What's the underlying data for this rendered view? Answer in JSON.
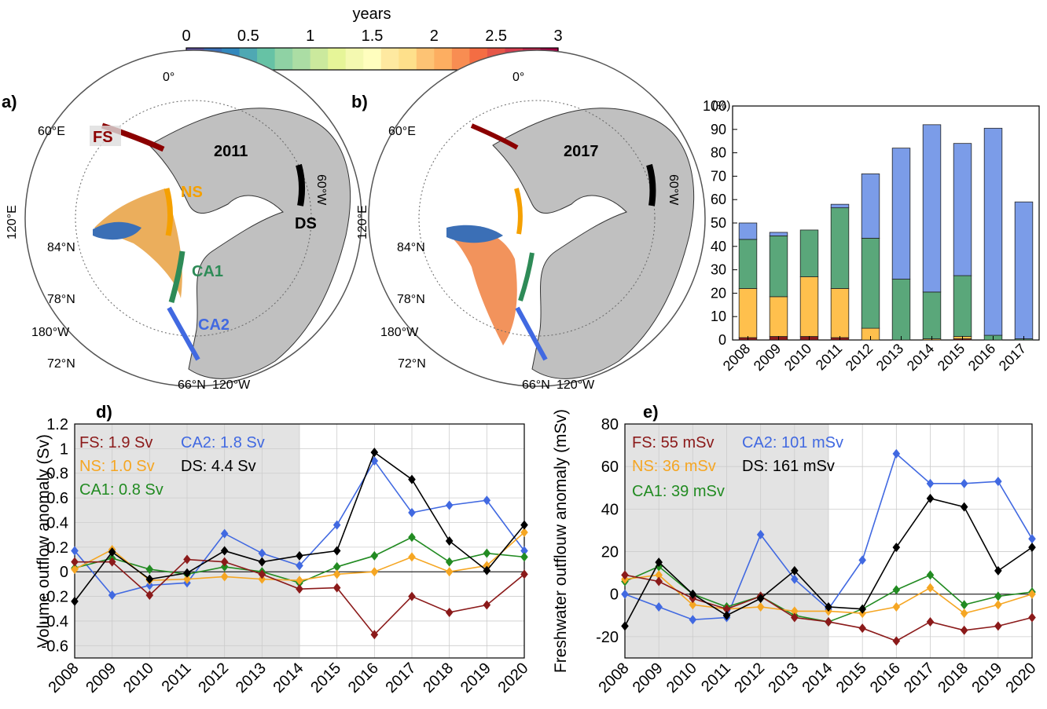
{
  "colorbar": {
    "title": "years",
    "ticks": [
      "0",
      "0.5",
      "1",
      "1.5",
      "2",
      "2.5",
      "3"
    ],
    "range": [
      0,
      3
    ],
    "colors": [
      "#5e4fa2",
      "#3b6fb6",
      "#3288bd",
      "#4fa8b3",
      "#66c2a5",
      "#8fd2a4",
      "#abdda4",
      "#cbe99d",
      "#e6f598",
      "#f4f9b0",
      "#fffebe",
      "#fee9a0",
      "#fee08b",
      "#fdc374",
      "#fdae61",
      "#f88d52",
      "#f46d43",
      "#e55748",
      "#d53e4f",
      "#c0244b",
      "#9e0142"
    ]
  },
  "maps": [
    {
      "panel": "a)",
      "year": "2011",
      "sections": [
        {
          "name": "FS",
          "color": "#8b0000"
        },
        {
          "name": "NS",
          "color": "#f5a000"
        },
        {
          "name": "DS",
          "color": "#000000"
        },
        {
          "name": "CA1",
          "color": "#2e8b57"
        },
        {
          "name": "CA2",
          "color": "#4169e1"
        }
      ],
      "labels": [
        "0°",
        "60°E",
        "120°E",
        "84°N",
        "78°N",
        "180°W",
        "72°N",
        "66°N",
        "120°W",
        "60°W"
      ]
    },
    {
      "panel": "b)",
      "year": "2017",
      "labels": [
        "0°",
        "60°E",
        "120°E",
        "84°N",
        "78°N",
        "180°W",
        "72°N",
        "66°N",
        "120°W",
        "60°W"
      ]
    }
  ],
  "chart_data": [
    {
      "panel": "c)",
      "type": "bar",
      "stacked": true,
      "ylabel": "(%)",
      "ylim": [
        0,
        100
      ],
      "yticks": [
        0,
        10,
        20,
        30,
        40,
        50,
        60,
        70,
        80,
        90,
        100
      ],
      "categories": [
        "2008",
        "2009",
        "2010",
        "2011",
        "2012",
        "2013",
        "2014",
        "2015",
        "2016",
        "2017"
      ],
      "series": [
        {
          "color": "#8b1a1a",
          "values": [
            1,
            1.5,
            1.5,
            1,
            0,
            0,
            0,
            0.5,
            0,
            0
          ]
        },
        {
          "color": "#ffc04d",
          "values": [
            21,
            17,
            25.5,
            21,
            5,
            0,
            0.5,
            1,
            0,
            0
          ]
        },
        {
          "color": "#5aa77a",
          "values": [
            21,
            26,
            20,
            34.5,
            38.5,
            26,
            20,
            26,
            2,
            0.5
          ]
        },
        {
          "color": "#7b9ce8",
          "values": [
            7,
            1.5,
            0,
            1.5,
            27.5,
            56,
            71.5,
            56.5,
            88.5,
            58.5
          ]
        }
      ]
    },
    {
      "panel": "d)",
      "type": "line",
      "ylabel": "Volume outflow anomaly (Sv)",
      "ylim": [
        -0.7,
        1.2
      ],
      "yticks": [
        "-0.6",
        "-0.4",
        "-0.2",
        "0",
        "0.2",
        "0.4",
        "0.6",
        "0.8",
        "1",
        "1.2"
      ],
      "ytickvals": [
        -0.6,
        -0.4,
        -0.2,
        0,
        0.2,
        0.4,
        0.6,
        0.8,
        1,
        1.2
      ],
      "x": [
        "2008",
        "2009",
        "2010",
        "2011",
        "2012",
        "2013",
        "2014",
        "2015",
        "2016",
        "2017",
        "2018",
        "2019",
        "2020"
      ],
      "shade_until": "2014",
      "legend": [
        {
          "text": "FS: 1.9 Sv",
          "color": "#8b1a1a"
        },
        {
          "text": "CA2: 1.8 Sv",
          "color": "#4169e1"
        },
        {
          "text": "NS: 1.0 Sv",
          "color": "#f5a623"
        },
        {
          "text": "DS: 4.4 Sv",
          "color": "#000000"
        },
        {
          "text": "CA1: 0.8 Sv",
          "color": "#228b22"
        }
      ],
      "series": [
        {
          "color": "#4169e1",
          "values": [
            0.17,
            -0.19,
            -0.11,
            -0.09,
            0.31,
            0.15,
            0.05,
            0.38,
            0.9,
            0.48,
            0.54,
            0.58,
            0.17
          ]
        },
        {
          "color": "#228b22",
          "values": [
            0.03,
            0.11,
            0.02,
            -0.02,
            0.04,
            0.0,
            -0.09,
            0.04,
            0.13,
            0.28,
            0.08,
            0.15,
            0.12
          ]
        },
        {
          "color": "#f5a623",
          "values": [
            0.02,
            0.18,
            -0.07,
            -0.06,
            -0.04,
            -0.06,
            -0.07,
            -0.02,
            0.0,
            0.12,
            0.0,
            0.05,
            0.32
          ]
        },
        {
          "color": "#8b1a1a",
          "values": [
            0.08,
            0.08,
            -0.19,
            0.1,
            0.08,
            -0.02,
            -0.14,
            -0.13,
            -0.51,
            -0.2,
            -0.33,
            -0.27,
            -0.02
          ]
        },
        {
          "color": "#000000",
          "values": [
            -0.24,
            0.16,
            -0.06,
            -0.01,
            0.17,
            0.08,
            0.13,
            0.17,
            0.97,
            0.75,
            0.25,
            0.01,
            0.38
          ]
        }
      ]
    },
    {
      "panel": "e)",
      "type": "line",
      "ylabel": "Freshwater outflouw anomaly (mSv)",
      "ylim": [
        -30,
        80
      ],
      "yticks": [
        "-20",
        "0",
        "20",
        "40",
        "60",
        "80"
      ],
      "ytickvals": [
        -20,
        0,
        20,
        40,
        60,
        80
      ],
      "x": [
        "2008",
        "2009",
        "2010",
        "2011",
        "2012",
        "2013",
        "2014",
        "2015",
        "2016",
        "2017",
        "2018",
        "2019",
        "2020"
      ],
      "shade_until": "2014",
      "legend": [
        {
          "text": "FS: 55 mSv",
          "color": "#8b1a1a"
        },
        {
          "text": "CA2: 101 mSv",
          "color": "#4169e1"
        },
        {
          "text": "NS: 36 mSv",
          "color": "#f5a623"
        },
        {
          "text": "DS: 161 mSv",
          "color": "#000000"
        },
        {
          "text": "CA1: 39 mSv",
          "color": "#228b22"
        }
      ],
      "series": [
        {
          "color": "#4169e1",
          "values": [
            0,
            -6,
            -12,
            -11,
            28,
            7,
            -7,
            16,
            66,
            52,
            52,
            53,
            26
          ]
        },
        {
          "color": "#228b22",
          "values": [
            6,
            13,
            0,
            -6,
            -1,
            -10,
            -13,
            -7,
            2,
            9,
            -5,
            -1,
            1
          ]
        },
        {
          "color": "#f5a623",
          "values": [
            7,
            9,
            -5,
            -7,
            -6,
            -8,
            -8,
            -9,
            -6,
            3,
            -9,
            -5,
            0
          ]
        },
        {
          "color": "#8b1a1a",
          "values": [
            9,
            6,
            -2,
            -7,
            -1,
            -11,
            -13,
            -16,
            -22,
            -13,
            -17,
            -15,
            -11
          ]
        },
        {
          "color": "#000000",
          "values": [
            -15,
            15,
            0,
            -10,
            -2,
            11,
            -6,
            -7,
            22,
            45,
            41,
            11,
            22
          ]
        }
      ]
    }
  ]
}
